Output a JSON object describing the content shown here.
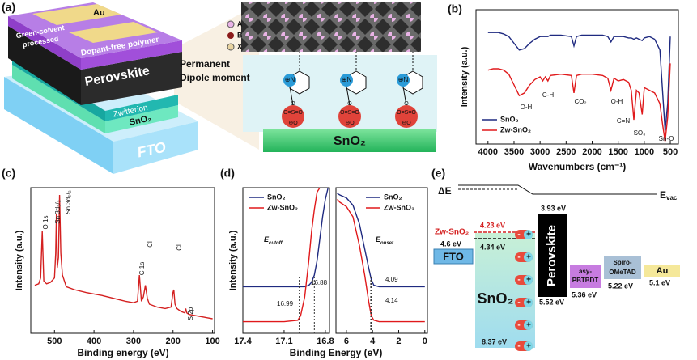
{
  "panel_labels": [
    "(a)",
    "(b)",
    "(c)",
    "(d)",
    "(e)"
  ],
  "panel_a": {
    "stack": {
      "top_contact": "Au",
      "polymer_note": [
        "Green-solvent",
        "processed"
      ],
      "polymer": "Dopant-free polymer",
      "absorber": "Perovskite",
      "interlayer": "Zwitterion",
      "etl": "SnO₂",
      "substrate": "FTO"
    },
    "legend": [
      "A",
      "B",
      "X"
    ],
    "dipole": [
      "Permanent",
      "Dipole moment"
    ],
    "molecule": {
      "cation": "⊕N",
      "sulfonate_top": "O",
      "sulfonate_mid": "O=S=O",
      "sulfonate_bottom": "⊖O"
    },
    "slab": "SnO₂"
  },
  "chart_data": [
    {
      "type": "line",
      "xlabel": "Wavenumbers (cm⁻¹)",
      "ylabel": "Intensity (a.u.)",
      "xlim": [
        4230,
        345
      ],
      "xticks": [
        4000,
        3500,
        3000,
        2500,
        2000,
        1500,
        1000,
        500
      ],
      "ylim": [
        0,
        100
      ],
      "x": [
        4000,
        3900,
        3800,
        3700,
        3600,
        3500,
        3400,
        3300,
        3200,
        3100,
        3000,
        2950,
        2900,
        2850,
        2800,
        2600,
        2400,
        2350,
        2300,
        2200,
        2000,
        1800,
        1700,
        1640,
        1580,
        1500,
        1400,
        1300,
        1250,
        1200,
        1150,
        1100,
        1040,
        1000,
        900,
        800,
        700,
        650,
        600,
        550,
        500
      ],
      "series": [
        {
          "name": "SnO₂",
          "color": "#1f2a80",
          "values": [
            83,
            83,
            83,
            82,
            80,
            75,
            70,
            71,
            75,
            78,
            80,
            80,
            80,
            80,
            81,
            81,
            80,
            73,
            80,
            81,
            81,
            81,
            80,
            76,
            80,
            80,
            80,
            79,
            79,
            78,
            79,
            78,
            77,
            79,
            80,
            78,
            70,
            40,
            10,
            30,
            80
          ]
        },
        {
          "name": "Zw-SnO₂",
          "color": "#e0191b",
          "values": [
            55,
            56,
            56,
            55,
            52,
            44,
            36,
            38,
            44,
            48,
            50,
            47,
            50,
            47,
            51,
            52,
            51,
            38,
            51,
            52,
            52,
            51,
            49,
            40,
            49,
            47,
            48,
            46,
            40,
            18,
            40,
            38,
            22,
            42,
            40,
            38,
            30,
            15,
            2,
            20,
            60
          ]
        }
      ],
      "legend": "lower left",
      "annotations": [
        "O-H",
        "C-H",
        "CO₂",
        "O-H",
        "C=N",
        "SO₃",
        "Sn-O"
      ]
    },
    {
      "type": "line",
      "xlabel": "Binding energy (eV)",
      "ylabel": "Intensity (a.u.)",
      "xlim": [
        560,
        95
      ],
      "xticks": [
        500,
        400,
        300,
        200,
        100
      ],
      "ylim": [
        0,
        100
      ],
      "x": [
        550,
        540,
        535,
        531,
        527,
        520,
        510,
        500,
        497,
        495,
        493,
        490,
        487,
        484,
        480,
        470,
        450,
        420,
        400,
        380,
        350,
        320,
        300,
        290,
        285,
        280,
        275,
        270,
        265,
        260,
        240,
        220,
        205,
        200,
        198,
        195,
        190,
        180,
        170,
        168,
        165,
        160,
        140,
        120,
        100
      ],
      "series": [
        {
          "name": "Zw-SnO₂",
          "color": "#d42020",
          "values": [
            33,
            34,
            38,
            70,
            36,
            34,
            35,
            38,
            55,
            82,
            45,
            52,
            95,
            55,
            40,
            32,
            30,
            28,
            27,
            26,
            24,
            22,
            21,
            22,
            40,
            22,
            25,
            33,
            24,
            20,
            18,
            17,
            18,
            28,
            30,
            20,
            17,
            15,
            14,
            17,
            14,
            13,
            12,
            11,
            10
          ]
        }
      ],
      "annotations": [
        "O 1s",
        "Sn 3d₃/₂",
        "Sn 3d₅/₂",
        "C 1s",
        "Cl",
        "Cl",
        "S 2p"
      ]
    },
    {
      "type": "line",
      "xlabel": "Binding Energy (eV)",
      "ylabel": "Intensity (a.u.)",
      "xlim": [
        17.4,
        16.77
      ],
      "xticks": [
        17.4,
        17.1,
        16.8
      ],
      "ylim": [
        0,
        100
      ],
      "x": [
        17.4,
        17.3,
        17.2,
        17.1,
        17.0,
        16.98,
        16.95,
        16.92,
        16.9,
        16.88,
        16.86,
        16.84,
        16.82,
        16.8,
        16.78
      ],
      "series": [
        {
          "name": "SnO₂",
          "color": "#1f2a80",
          "values": [
            32,
            32,
            32,
            32,
            32,
            32,
            32,
            33,
            35,
            40,
            50,
            65,
            80,
            92,
            100
          ]
        },
        {
          "name": "Zw-SnO₂",
          "color": "#e0191b",
          "values": [
            8,
            8,
            8,
            8,
            9,
            12,
            25,
            50,
            70,
            85,
            97,
            100,
            null,
            null,
            null
          ]
        }
      ],
      "legend": "upper left",
      "energy_label": {
        "symbol": "E",
        "subscript": "cutoff"
      },
      "markers": [
        16.88,
        16.99
      ]
    },
    {
      "type": "line",
      "xlim": [
        6.8,
        -0.2
      ],
      "xticks": [
        6,
        4,
        2,
        0
      ],
      "ylim": [
        0,
        100
      ],
      "x": [
        6.7,
        6.5,
        6,
        5.5,
        5,
        4.6,
        4.3,
        4.1,
        3.9,
        3.5,
        3,
        2,
        1,
        0
      ],
      "series": [
        {
          "name": "SnO₂",
          "color": "#1f2a80",
          "values": [
            96,
            95,
            93,
            88,
            75,
            58,
            45,
            37,
            33,
            32,
            32,
            32,
            32,
            32
          ]
        },
        {
          "name": "Zw-SnO₂",
          "color": "#e0191b",
          "values": [
            92,
            90,
            87,
            80,
            60,
            40,
            22,
            12,
            9,
            8,
            8,
            8,
            8,
            8
          ]
        }
      ],
      "legend": "upper right",
      "energy_label": {
        "symbol": "E",
        "subscript": "onset"
      },
      "markers": [
        4.09,
        4.14
      ]
    }
  ],
  "panel_e": {
    "delta": "ΔE",
    "evac": {
      "symbol": "E",
      "subscript": "vac"
    },
    "zw": "Zw-SnO₂",
    "zw_level": "4.23 eV",
    "fto": "FTO",
    "fto_level": "4.6 eV",
    "sno2": "SnO₂",
    "sno2_cb": "4.34 eV",
    "sno2_vb": "8.37 eV",
    "perovskite": "Perovskite",
    "pvk_cb": "3.93 eV",
    "pvk_vb": "5.52 eV",
    "htl1": [
      "asy-",
      "PBTBDT"
    ],
    "htl1_level": "5.36 eV",
    "htl2": [
      "Spiro-",
      "OMeTAD"
    ],
    "htl2_level": "5.22 eV",
    "au": "Au",
    "au_level": "5.1 eV",
    "charge": {
      "minus": "-",
      "plus": "+"
    }
  }
}
